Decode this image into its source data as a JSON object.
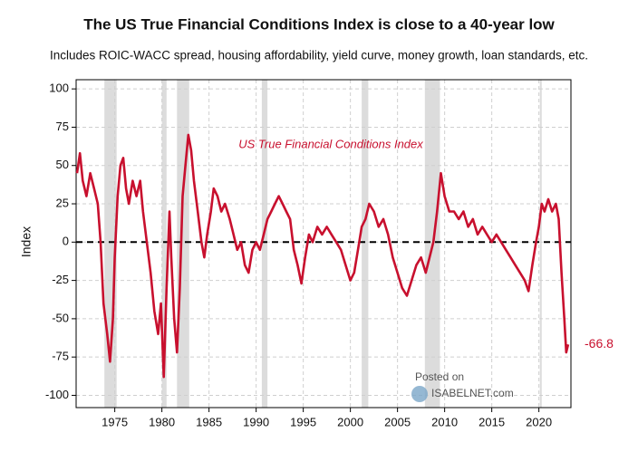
{
  "chart_data": {
    "type": "line",
    "title": "The US True Financial Conditions Index is close to a 40-year low",
    "subtitle": "Includes ROIC-WACC spread, housing affordability, yield curve, money growth, loan standards, etc.",
    "y_label": "Index",
    "watermark": [
      "Posted on",
      "ISABELNET.com"
    ],
    "xlim": [
      1970.9,
      2023.4
    ],
    "ylim": [
      -108,
      106
    ],
    "xticks": [
      1975,
      1980,
      1985,
      1990,
      1995,
      2000,
      2005,
      2010,
      2015,
      2020
    ],
    "yticks": [
      -100,
      -75,
      -50,
      -25,
      0,
      25,
      50,
      75,
      100
    ],
    "grid": true,
    "reference_line": 0,
    "shaded_periods": [
      [
        1973.9,
        1975.2
      ],
      [
        1980.0,
        1980.5
      ],
      [
        1981.6,
        1982.9
      ],
      [
        1990.6,
        1991.2
      ],
      [
        2001.2,
        2001.9
      ],
      [
        2007.9,
        2009.5
      ],
      [
        2020.1,
        2020.3
      ]
    ],
    "series_name": "US True Financial Conditions Index",
    "color": "#c8102e",
    "x": [
      1971.0,
      1971.3,
      1971.6,
      1972.0,
      1972.4,
      1972.8,
      1973.2,
      1973.5,
      1973.8,
      1974.2,
      1974.5,
      1974.8,
      1975.0,
      1975.3,
      1975.6,
      1975.9,
      1976.2,
      1976.5,
      1976.9,
      1977.3,
      1977.7,
      1978.0,
      1978.4,
      1978.8,
      1979.2,
      1979.6,
      1979.9,
      1980.2,
      1980.5,
      1980.8,
      1981.0,
      1981.3,
      1981.6,
      1981.9,
      1982.2,
      1982.5,
      1982.8,
      1983.1,
      1983.4,
      1983.8,
      1984.2,
      1984.5,
      1984.8,
      1985.2,
      1985.5,
      1985.9,
      1986.3,
      1986.7,
      1987.2,
      1987.6,
      1988.0,
      1988.4,
      1988.8,
      1989.2,
      1989.6,
      1990.0,
      1990.4,
      1990.8,
      1991.2,
      1991.6,
      1992.0,
      1992.4,
      1992.8,
      1993.2,
      1993.6,
      1994.0,
      1994.4,
      1994.8,
      1995.2,
      1995.6,
      1996.0,
      1996.5,
      1997.0,
      1997.5,
      1998.0,
      1998.5,
      1999.0,
      1999.5,
      2000.0,
      2000.4,
      2000.8,
      2001.2,
      2001.6,
      2002.0,
      2002.5,
      2003.0,
      2003.5,
      2004.0,
      2004.5,
      2005.0,
      2005.5,
      2006.0,
      2006.5,
      2007.0,
      2007.5,
      2008.0,
      2008.4,
      2008.8,
      2009.2,
      2009.6,
      2010.0,
      2010.5,
      2011.0,
      2011.5,
      2012.0,
      2012.5,
      2013.0,
      2013.5,
      2014.0,
      2014.5,
      2015.0,
      2015.5,
      2016.0,
      2016.5,
      2017.0,
      2017.5,
      2018.0,
      2018.5,
      2018.9,
      2019.3,
      2019.7,
      2020.0,
      2020.3,
      2020.6,
      2021.0,
      2021.4,
      2021.8,
      2022.1,
      2022.4,
      2022.7,
      2022.9,
      2023.1
    ],
    "values": [
      45,
      58,
      40,
      30,
      45,
      35,
      25,
      0,
      -40,
      -60,
      -78,
      -50,
      -10,
      30,
      50,
      55,
      35,
      25,
      40,
      30,
      40,
      20,
      0,
      -20,
      -45,
      -60,
      -40,
      -88,
      -30,
      20,
      -10,
      -50,
      -72,
      -30,
      30,
      50,
      70,
      60,
      40,
      20,
      0,
      -10,
      5,
      20,
      35,
      30,
      20,
      25,
      15,
      5,
      -5,
      0,
      -15,
      -20,
      -5,
      0,
      -5,
      5,
      15,
      20,
      25,
      30,
      25,
      20,
      15,
      -5,
      -15,
      -27,
      -10,
      5,
      0,
      10,
      5,
      10,
      5,
      0,
      -5,
      -15,
      -25,
      -20,
      -5,
      10,
      15,
      25,
      20,
      10,
      15,
      5,
      -10,
      -20,
      -30,
      -35,
      -25,
      -15,
      -10,
      -20,
      -10,
      0,
      20,
      45,
      30,
      20,
      20,
      15,
      20,
      10,
      15,
      5,
      10,
      5,
      0,
      5,
      0,
      -5,
      -10,
      -15,
      -20,
      -25,
      -32,
      -15,
      0,
      10,
      25,
      20,
      28,
      20,
      25,
      15,
      -20,
      -50,
      -72,
      -66.8
    ]
  }
}
